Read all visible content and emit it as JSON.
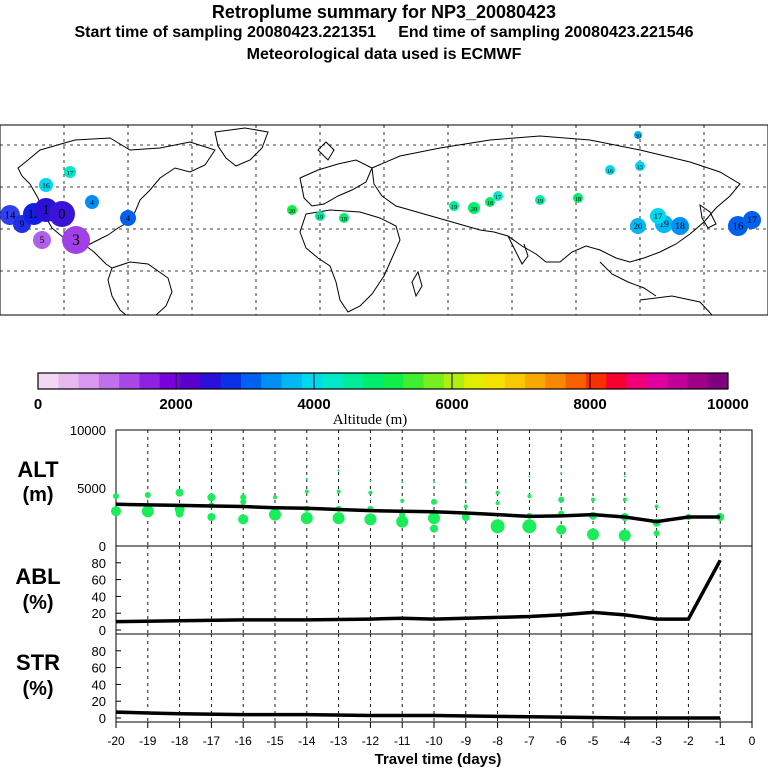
{
  "header": {
    "title": "Retroplume summary for NP3_20080423",
    "start": "Start time of sampling 20080423.221351",
    "end": "End time of sampling 20080423.221546",
    "met": "Meteorological data used is ECMWF"
  },
  "colorbar": {
    "tick_labels": [
      "0",
      "2000",
      "4000",
      "6000",
      "8000",
      "10000"
    ],
    "label": "Altitude (m)",
    "colors": [
      "#f2d8f2",
      "#e8b8f0",
      "#d898ee",
      "#c070ea",
      "#a848e6",
      "#9020e2",
      "#7a00dd",
      "#5a00cc",
      "#2a10d8",
      "#0a30e8",
      "#0060f0",
      "#0090f4",
      "#00b8f4",
      "#00d8f0",
      "#00e8c8",
      "#00ec9c",
      "#00ee70",
      "#10ee48",
      "#40ee30",
      "#78ee20",
      "#b0ee10",
      "#e0ee00",
      "#f6e200",
      "#f8c800",
      "#f8a800",
      "#f88800",
      "#f86000",
      "#f83000",
      "#f80030",
      "#f00078",
      "#e000a0",
      "#c00098",
      "#a00088",
      "#800080"
    ]
  },
  "map": {
    "bg": "#ffffff",
    "markers": [
      {
        "label": "14",
        "color": "#3040f0",
        "size": 10
      },
      {
        "label": "9",
        "color": "#2030e8",
        "size": 9
      },
      {
        "label": "12",
        "color": "#1020e0",
        "size": 11
      },
      {
        "label": "1",
        "color": "#2a10d8",
        "size": 12
      },
      {
        "label": "0",
        "color": "#3a14d8",
        "size": 13
      },
      {
        "label": "3",
        "color": "#a040e6",
        "size": 14
      },
      {
        "label": "5",
        "color": "#b060ea",
        "size": 9
      },
      {
        "label": "16",
        "color": "#00d8f0",
        "size": 7
      },
      {
        "label": "17",
        "color": "#00e8c8",
        "size": 6
      },
      {
        "label": "4",
        "color": "#0090f4",
        "size": 7
      },
      {
        "label": "4",
        "color": "#0060f0",
        "size": 8
      },
      {
        "label": "20",
        "color": "#10ee48",
        "size": 5
      },
      {
        "label": "19",
        "color": "#00ec9c",
        "size": 5
      },
      {
        "label": "18",
        "color": "#00ee70",
        "size": 5
      },
      {
        "label": "20",
        "color": "#00ee70",
        "size": 6
      },
      {
        "label": "19",
        "color": "#00ec9c",
        "size": 5
      },
      {
        "label": "18",
        "color": "#00ee70",
        "size": 5
      },
      {
        "label": "17",
        "color": "#00e8c8",
        "size": 5
      },
      {
        "label": "19",
        "color": "#00ec9c",
        "size": 5
      },
      {
        "label": "18",
        "color": "#00ee70",
        "size": 5
      },
      {
        "label": "20",
        "color": "#00b8f4",
        "size": 8
      },
      {
        "label": "19",
        "color": "#00b8f4",
        "size": 9
      },
      {
        "label": "18",
        "color": "#0090f4",
        "size": 9
      },
      {
        "label": "17",
        "color": "#00d8f0",
        "size": 8
      },
      {
        "label": "16",
        "color": "#0060f0",
        "size": 10
      },
      {
        "label": "17",
        "color": "#0060f0",
        "size": 9
      },
      {
        "label": "16",
        "color": "#00d8f0",
        "size": 5
      },
      {
        "label": "15",
        "color": "#00d8f0",
        "size": 5
      },
      {
        "label": "30",
        "color": "#00b8f4",
        "size": 4
      }
    ]
  },
  "panels": {
    "alt": {
      "name": "ALT",
      "unit": "(m)",
      "ticks": [
        "10000",
        "5000",
        "0"
      ]
    },
    "abl": {
      "name": "ABL",
      "unit": "(%)",
      "ticks": [
        "80",
        "60",
        "40",
        "20",
        "0"
      ]
    },
    "str": {
      "name": "STR",
      "unit": "(%)",
      "ticks": [
        "80",
        "60",
        "40",
        "20",
        "0"
      ]
    }
  },
  "chart_data": {
    "type": "line",
    "xlabel": "Travel time (days)",
    "xlim": [
      -20,
      0
    ],
    "x_ticks": [
      "-20",
      "-19",
      "-18",
      "-17",
      "-16",
      "-15",
      "-14",
      "-13",
      "-12",
      "-11",
      "-10",
      "-9",
      "-8",
      "-7",
      "-6",
      "-5",
      "-4",
      "-3",
      "-2",
      "-1",
      "0"
    ],
    "alt": {
      "ylabel": "ALT (m)",
      "ylim": [
        0,
        10000
      ],
      "line_x": [
        -20,
        -19,
        -18,
        -17,
        -16,
        -15,
        -14,
        -13,
        -12,
        -11,
        -10,
        -9,
        -8,
        -7,
        -6,
        -5,
        -4,
        -3,
        -2,
        -1
      ],
      "line_y": [
        3600,
        3550,
        3500,
        3450,
        3400,
        3300,
        3250,
        3150,
        3050,
        3000,
        2950,
        2850,
        2700,
        2550,
        2600,
        2700,
        2500,
        2100,
        2500,
        2500
      ],
      "scatter": [
        {
          "x": -20,
          "y": 4300,
          "r": 3
        },
        {
          "x": -20,
          "y": 3000,
          "r": 5
        },
        {
          "x": -19,
          "y": 4400,
          "r": 3
        },
        {
          "x": -19,
          "y": 3000,
          "r": 6
        },
        {
          "x": -18,
          "y": 4600,
          "r": 4
        },
        {
          "x": -18,
          "y": 3200,
          "r": 5
        },
        {
          "x": -18,
          "y": 2800,
          "r": 4
        },
        {
          "x": -17,
          "y": 4200,
          "r": 4
        },
        {
          "x": -17,
          "y": 3500,
          "r": 3
        },
        {
          "x": -17,
          "y": 2500,
          "r": 4
        },
        {
          "x": -16,
          "y": 4200,
          "r": 3
        },
        {
          "x": -16,
          "y": 3800,
          "r": 3
        },
        {
          "x": -16,
          "y": 2300,
          "r": 5
        },
        {
          "x": -15,
          "y": 4200,
          "r": 2
        },
        {
          "x": -15,
          "y": 2700,
          "r": 6
        },
        {
          "x": -14,
          "y": 5800,
          "r": 1
        },
        {
          "x": -14,
          "y": 4700,
          "r": 2
        },
        {
          "x": -14,
          "y": 3200,
          "r": 3
        },
        {
          "x": -14,
          "y": 2400,
          "r": 6
        },
        {
          "x": -13,
          "y": 6500,
          "r": 1
        },
        {
          "x": -13,
          "y": 4700,
          "r": 2
        },
        {
          "x": -13,
          "y": 3200,
          "r": 3
        },
        {
          "x": -13,
          "y": 2400,
          "r": 6
        },
        {
          "x": -12,
          "y": 5600,
          "r": 1
        },
        {
          "x": -12,
          "y": 4600,
          "r": 2
        },
        {
          "x": -12,
          "y": 3200,
          "r": 3
        },
        {
          "x": -12,
          "y": 2300,
          "r": 6
        },
        {
          "x": -11,
          "y": 5500,
          "r": 1
        },
        {
          "x": -11,
          "y": 3900,
          "r": 2
        },
        {
          "x": -11,
          "y": 2700,
          "r": 3
        },
        {
          "x": -11,
          "y": 2100,
          "r": 6
        },
        {
          "x": -10,
          "y": 5500,
          "r": 1
        },
        {
          "x": -10,
          "y": 3800,
          "r": 3
        },
        {
          "x": -10,
          "y": 2400,
          "r": 6
        },
        {
          "x": -10,
          "y": 1500,
          "r": 4
        },
        {
          "x": -9,
          "y": 5500,
          "r": 1
        },
        {
          "x": -9,
          "y": 3400,
          "r": 2
        },
        {
          "x": -9,
          "y": 2500,
          "r": 4
        },
        {
          "x": -8,
          "y": 4600,
          "r": 2
        },
        {
          "x": -8,
          "y": 3700,
          "r": 2
        },
        {
          "x": -8,
          "y": 1700,
          "r": 7
        },
        {
          "x": -7,
          "y": 6000,
          "r": 1
        },
        {
          "x": -7,
          "y": 4300,
          "r": 2
        },
        {
          "x": -7,
          "y": 2600,
          "r": 3
        },
        {
          "x": -7,
          "y": 1700,
          "r": 7
        },
        {
          "x": -6,
          "y": 6300,
          "r": 1
        },
        {
          "x": -6,
          "y": 4000,
          "r": 3
        },
        {
          "x": -6,
          "y": 2800,
          "r": 3
        },
        {
          "x": -6,
          "y": 1400,
          "r": 5
        },
        {
          "x": -5,
          "y": 4000,
          "r": 2
        },
        {
          "x": -5,
          "y": 2600,
          "r": 4
        },
        {
          "x": -5,
          "y": 1000,
          "r": 6
        },
        {
          "x": -4,
          "y": 6000,
          "r": 1
        },
        {
          "x": -4,
          "y": 4000,
          "r": 2
        },
        {
          "x": -4,
          "y": 2500,
          "r": 4
        },
        {
          "x": -4,
          "y": 900,
          "r": 6
        },
        {
          "x": -3,
          "y": 3400,
          "r": 2
        },
        {
          "x": -3,
          "y": 2000,
          "r": 4
        },
        {
          "x": -3,
          "y": 1100,
          "r": 3
        },
        {
          "x": -2,
          "y": 2500,
          "r": 3
        },
        {
          "x": -1,
          "y": 2500,
          "r": 4
        }
      ]
    },
    "abl": {
      "ylabel": "ABL (%)",
      "ylim": [
        0,
        100
      ],
      "x": [
        -20,
        -18,
        -16,
        -14,
        -12,
        -11,
        -10,
        -8,
        -7,
        -6,
        -5,
        -4,
        -3,
        -2,
        -1
      ],
      "y": [
        10,
        11,
        12,
        12,
        13,
        14,
        13,
        15,
        16,
        18,
        21,
        18,
        13,
        13,
        83
      ]
    },
    "str": {
      "ylabel": "STR (%)",
      "ylim": [
        0,
        100
      ],
      "x": [
        -20,
        -19,
        -18,
        -16,
        -14,
        -12,
        -10,
        -8,
        -6,
        -4,
        -1
      ],
      "y": [
        7,
        6,
        5,
        4,
        4,
        3,
        3,
        2,
        1,
        0,
        0
      ]
    }
  }
}
